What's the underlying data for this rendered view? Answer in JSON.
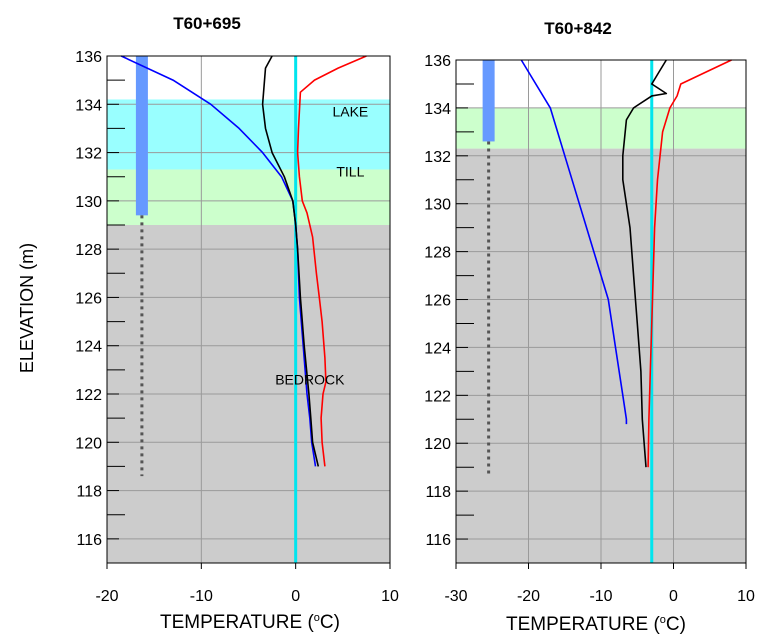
{
  "chart_data": [
    {
      "type": "line",
      "title": "T60+695",
      "xlabel_main": "TEMPERATURE (",
      "xlabel_sup": "o",
      "xlabel_end": "C)",
      "ylabel": "ELEVATION (m)",
      "xlim": [
        -20,
        10
      ],
      "ylim": [
        115,
        136
      ],
      "xticks": [
        -20,
        -10,
        0,
        10
      ],
      "yticks": [
        116,
        118,
        120,
        122,
        124,
        126,
        128,
        130,
        132,
        134,
        136
      ],
      "yminor": [
        115,
        117,
        119,
        121,
        123,
        125,
        127,
        129,
        131,
        133,
        135
      ],
      "grid": true,
      "layers": [
        {
          "label": "",
          "top": 136,
          "bottom": 134.2,
          "color": "#ffffff"
        },
        {
          "label": "LAKE",
          "top": 134.2,
          "bottom": 131.3,
          "color": "#99ffff",
          "label_x": 5.8,
          "label_y": 133.5
        },
        {
          "label": "TILL",
          "top": 131.3,
          "bottom": 129.0,
          "color": "#ccffcc",
          "label_x": 5.8,
          "label_y": 131.0
        },
        {
          "label": "BEDROCK",
          "top": 129.0,
          "bottom": 115,
          "color": "#cccccc",
          "label_x": 1.5,
          "label_y": 122.4
        }
      ],
      "casing": {
        "x": -16.3,
        "top": 136,
        "bottom": 129.4,
        "color": "#6699ff"
      },
      "dotted": {
        "x": -16.3,
        "top": 129.4,
        "bottom": 118.6,
        "color": "#555555"
      },
      "freeze_line": {
        "x": 0,
        "color": "#00e5ee"
      },
      "series": [
        {
          "color": "#0000ff",
          "points": [
            [
              -18.5,
              136
            ],
            [
              -13,
              135
            ],
            [
              -9,
              134
            ],
            [
              -6,
              133
            ],
            [
              -3.5,
              132
            ],
            [
              -1.5,
              131
            ],
            [
              -0.3,
              130
            ],
            [
              0,
              129
            ],
            [
              0.2,
              128
            ],
            [
              0.4,
              126
            ],
            [
              0.8,
              124
            ],
            [
              1.2,
              122
            ],
            [
              1.5,
              121
            ],
            [
              1.7,
              120
            ],
            [
              2.1,
              119
            ]
          ]
        },
        {
          "color": "#000000",
          "points": [
            [
              -2.5,
              136
            ],
            [
              -3.2,
              135.5
            ],
            [
              -3.5,
              134
            ],
            [
              -3.2,
              133
            ],
            [
              -2.5,
              132
            ],
            [
              -1.2,
              131
            ],
            [
              -0.3,
              130
            ],
            [
              0,
              129
            ],
            [
              0.2,
              128
            ],
            [
              0.5,
              126
            ],
            [
              0.9,
              124
            ],
            [
              1.4,
              122
            ],
            [
              1.6,
              121
            ],
            [
              1.8,
              120
            ],
            [
              2.4,
              119
            ]
          ]
        },
        {
          "color": "#ff0000",
          "points": [
            [
              7.5,
              136
            ],
            [
              4.5,
              135.5
            ],
            [
              2,
              135
            ],
            [
              0.5,
              134.5
            ],
            [
              0.3,
              133
            ],
            [
              0.2,
              132
            ],
            [
              0.4,
              131
            ],
            [
              0.7,
              130
            ],
            [
              1.2,
              129.5
            ],
            [
              1.8,
              128.5
            ],
            [
              2.2,
              127
            ],
            [
              2.5,
              126
            ],
            [
              2.8,
              125
            ],
            [
              3.1,
              123.5
            ],
            [
              3.2,
              122.5
            ],
            [
              2.9,
              122
            ],
            [
              2.7,
              121
            ],
            [
              2.8,
              120
            ],
            [
              3.1,
              119
            ]
          ]
        }
      ]
    },
    {
      "type": "line",
      "title": "T60+842",
      "xlabel_main": "TEMPERATURE (",
      "xlabel_sup": "o",
      "xlabel_end": "C)",
      "ylabel": "",
      "xlim": [
        -30,
        10
      ],
      "ylim": [
        115,
        136
      ],
      "xticks": [
        -30,
        -20,
        -10,
        0,
        10
      ],
      "yticks": [
        116,
        118,
        120,
        122,
        124,
        126,
        128,
        130,
        132,
        134,
        136
      ],
      "yminor": [
        115,
        117,
        119,
        121,
        123,
        125,
        127,
        129,
        131,
        133,
        135
      ],
      "grid": true,
      "layers": [
        {
          "label": "",
          "top": 136,
          "bottom": 134.0,
          "color": "#ffffff"
        },
        {
          "label": "",
          "top": 134.0,
          "bottom": 132.3,
          "color": "#ccffcc"
        },
        {
          "label": "",
          "top": 132.3,
          "bottom": 115,
          "color": "#cccccc"
        }
      ],
      "casing": {
        "x": -25.5,
        "top": 136,
        "bottom": 132.6,
        "color": "#6699ff"
      },
      "dotted": {
        "x": -25.5,
        "top": 132.6,
        "bottom": 118.6,
        "color": "#555555"
      },
      "freeze_line": {
        "x": -3.0,
        "color": "#00e5ee"
      },
      "series": [
        {
          "color": "#0000ff",
          "points": [
            [
              -21,
              136
            ],
            [
              -17,
              134
            ],
            [
              -15,
              132
            ],
            [
              -13,
              130
            ],
            [
              -11,
              128
            ],
            [
              -9,
              126
            ],
            [
              -8,
              124
            ],
            [
              -7,
              122
            ],
            [
              -6.5,
              121
            ],
            [
              -6.5,
              120.8
            ]
          ]
        },
        {
          "color": "#000000",
          "points": [
            [
              -1,
              136
            ],
            [
              -2,
              135.5
            ],
            [
              -3,
              135
            ],
            [
              -1,
              134.6
            ],
            [
              -3,
              134.5
            ],
            [
              -5.5,
              134
            ],
            [
              -6.5,
              133.5
            ],
            [
              -7,
              132
            ],
            [
              -7,
              131
            ],
            [
              -6,
              129
            ],
            [
              -5.5,
              127
            ],
            [
              -5,
              125
            ],
            [
              -4.5,
              123
            ],
            [
              -4.3,
              121
            ],
            [
              -3.8,
              119
            ]
          ]
        },
        {
          "color": "#ff0000",
          "points": [
            [
              8,
              136
            ],
            [
              4.5,
              135.5
            ],
            [
              1,
              135
            ],
            [
              0.5,
              134.5
            ],
            [
              -0.5,
              134
            ],
            [
              -1.5,
              133
            ],
            [
              -2.2,
              131
            ],
            [
              -2.6,
              129
            ],
            [
              -2.9,
              126
            ],
            [
              -3.2,
              123
            ],
            [
              -3.4,
              121
            ],
            [
              -3.5,
              119
            ]
          ]
        }
      ]
    }
  ]
}
